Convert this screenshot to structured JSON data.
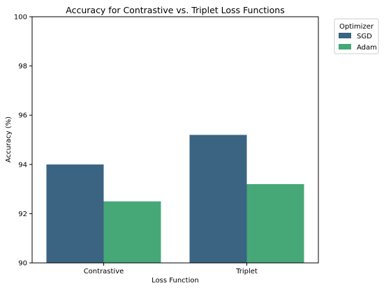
{
  "chart_data": {
    "type": "bar",
    "title": "Accuracy for Contrastive vs. Triplet Loss Functions",
    "xlabel": "Loss Function",
    "ylabel": "Accuracy (%)",
    "categories": [
      "Contrastive",
      "Triplet"
    ],
    "series": [
      {
        "name": "SGD",
        "values": [
          94.0,
          95.2
        ],
        "color": "#3b6482"
      },
      {
        "name": "Adam",
        "values": [
          92.5,
          93.2
        ],
        "color": "#46a877"
      }
    ],
    "ylim": [
      90,
      100
    ],
    "yticks": [
      90,
      92,
      94,
      96,
      98,
      100
    ],
    "grid": false,
    "legend": {
      "title": "Optimizer",
      "placement": "outside-top-right"
    }
  }
}
